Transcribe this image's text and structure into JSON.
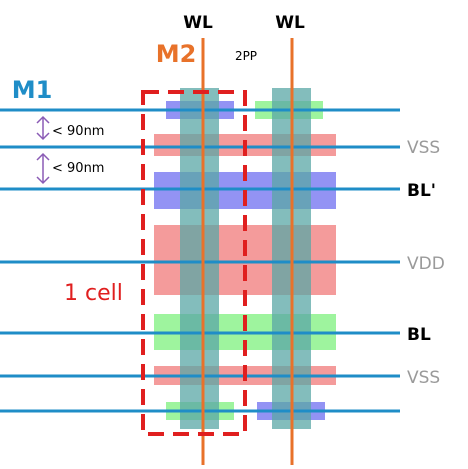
{
  "labels": {
    "wl_left": "WL",
    "wl_right": "WL",
    "m2": "M2",
    "pp": "2PP",
    "m1": "M1",
    "spacing_top": "< 90nm",
    "spacing_second": "< 90nm",
    "cell": "1 cell",
    "vss_top": "VSS",
    "bl_prime": "BL'",
    "vdd": "VDD",
    "bl": "BL",
    "vss_bottom": "VSS"
  },
  "colors": {
    "m1": "#1f8dc7",
    "m2": "#e8722a",
    "cell_border": "#e01f1f",
    "gate_teal": "#5aa7a6",
    "active_red": "#f07070",
    "active_green": "#7ef07e",
    "active_blue": "#6f6ff0",
    "spacing_arrow": "#8a5bb5",
    "rail_text": "#9a9a9a",
    "bl_text": "#000000",
    "cell_text": "#e01f1f"
  }
}
